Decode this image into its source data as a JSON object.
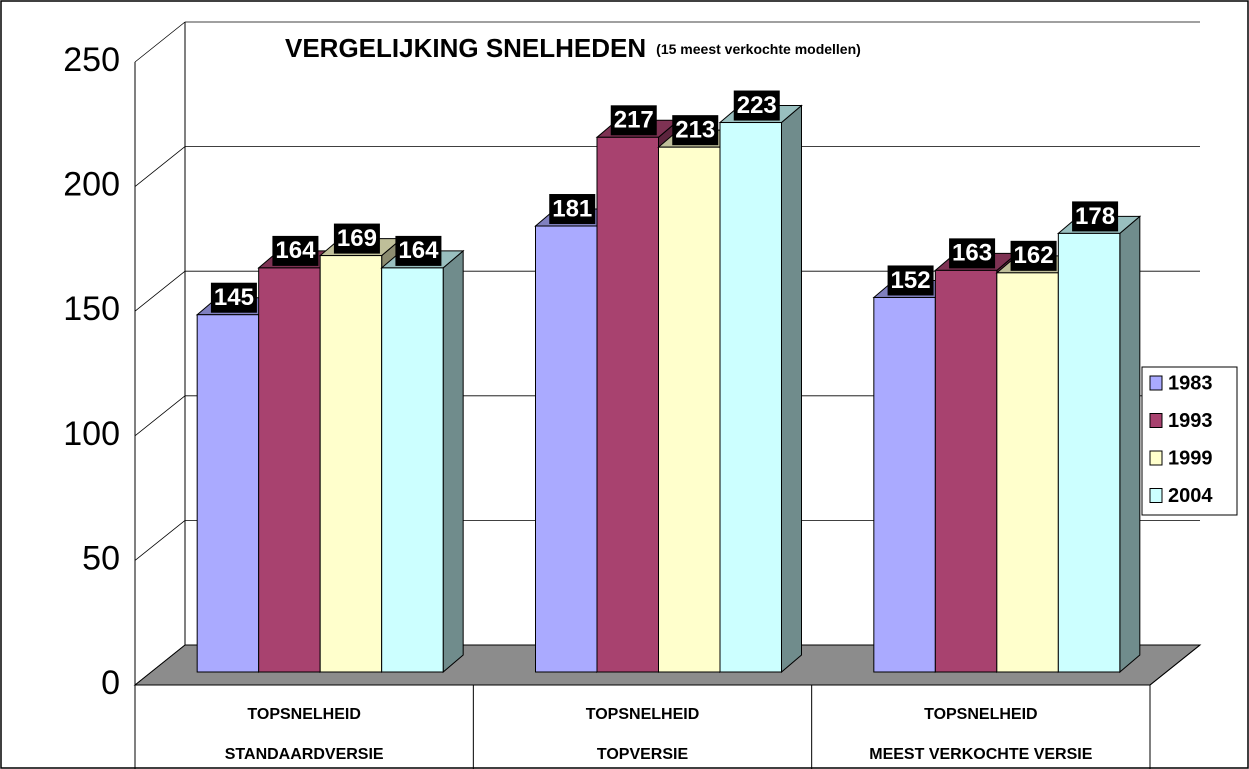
{
  "chart_data": {
    "type": "bar3d",
    "title": "VERGELIJKING SNELHEDEN",
    "subtitle": "(15 meest verkochte modellen)",
    "categories": [
      [
        "TOPSNELHEID",
        "STANDAARDVERSIE"
      ],
      [
        "TOPSNELHEID",
        "TOPVERSIE"
      ],
      [
        "TOPSNELHEID",
        "MEEST VERKOCHTE VERSIE"
      ]
    ],
    "series": [
      {
        "name": "1983",
        "color": "#aaaaff",
        "values": [
          145,
          181,
          152
        ]
      },
      {
        "name": "1993",
        "color": "#a8426f",
        "values": [
          164,
          217,
          163
        ]
      },
      {
        "name": "1999",
        "color": "#ffffcc",
        "values": [
          169,
          213,
          162
        ]
      },
      {
        "name": "2004",
        "color": "#ccffff",
        "values": [
          164,
          223,
          178
        ]
      }
    ],
    "ylim": [
      0,
      250
    ],
    "yticks": [
      0,
      50,
      100,
      150,
      200,
      250
    ],
    "grid": true,
    "legend": "right",
    "data_labels": true
  }
}
